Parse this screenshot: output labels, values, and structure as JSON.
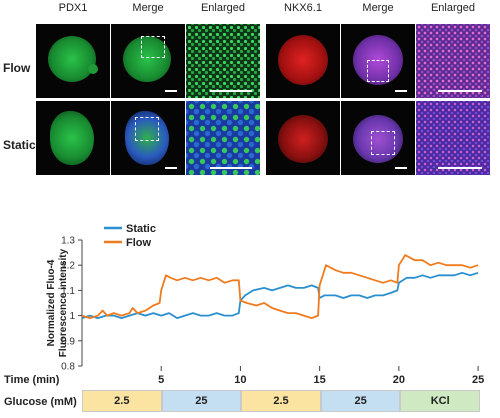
{
  "panels": {
    "headers": [
      "PDX1",
      "Merge",
      "Enlarged",
      "NKX6.1",
      "Merge",
      "Enlarged"
    ],
    "rows": [
      "Flow",
      "Static"
    ]
  },
  "chart_data": {
    "type": "line",
    "title": "",
    "xlabel": "Time (min)",
    "ylabel": "Normalized Fluo-4 Fluorescence intensity",
    "xlim": [
      0,
      25.5
    ],
    "ylim": [
      0.8,
      1.3
    ],
    "xticks": [
      5,
      10,
      15,
      20,
      25
    ],
    "yticks": [
      0.8,
      0.9,
      1.0,
      1.1,
      1.2,
      1.3
    ],
    "legend_position": "top-left",
    "series": [
      {
        "name": "Static",
        "color": "#2a8fd0",
        "x": [
          0.0,
          0.5,
          1.0,
          1.5,
          2.0,
          2.5,
          3.0,
          3.5,
          4.0,
          4.5,
          5.0,
          5.5,
          6.0,
          6.5,
          7.0,
          7.5,
          8.0,
          8.5,
          9.0,
          9.5,
          9.9,
          10.0,
          10.3,
          10.8,
          11.5,
          12.0,
          12.5,
          13.0,
          13.5,
          14.0,
          14.5,
          14.9,
          15.0,
          15.3,
          16.0,
          16.5,
          17.0,
          17.5,
          18.0,
          18.5,
          19.0,
          19.5,
          19.9,
          20.0,
          20.5,
          21.0,
          21.5,
          22.0,
          22.5,
          23.0,
          23.5,
          24.0,
          24.5,
          25.0
        ],
        "values": [
          0.99,
          1.0,
          0.99,
          1.0,
          1.0,
          0.99,
          1.0,
          1.01,
          1.0,
          1.01,
          1.0,
          1.01,
          0.99,
          1.0,
          1.01,
          1.0,
          1.0,
          1.01,
          1.0,
          1.0,
          1.01,
          1.06,
          1.08,
          1.1,
          1.11,
          1.1,
          1.11,
          1.12,
          1.11,
          1.11,
          1.12,
          1.11,
          1.07,
          1.08,
          1.08,
          1.07,
          1.08,
          1.08,
          1.07,
          1.08,
          1.08,
          1.09,
          1.1,
          1.13,
          1.15,
          1.15,
          1.16,
          1.15,
          1.16,
          1.16,
          1.16,
          1.17,
          1.16,
          1.17
        ]
      },
      {
        "name": "Flow",
        "color": "#ef7b1f",
        "x": [
          0.0,
          0.5,
          1.0,
          1.3,
          1.6,
          2.0,
          2.5,
          3.0,
          3.2,
          3.5,
          4.0,
          4.5,
          4.9,
          5.0,
          5.3,
          5.6,
          6.0,
          6.5,
          7.0,
          7.5,
          8.0,
          8.5,
          9.0,
          9.5,
          9.9,
          10.0,
          10.4,
          11.0,
          11.5,
          12.0,
          12.5,
          13.0,
          13.5,
          14.0,
          14.5,
          14.9,
          15.0,
          15.4,
          16.0,
          16.5,
          17.0,
          17.5,
          18.0,
          18.5,
          19.0,
          19.5,
          19.9,
          20.0,
          20.4,
          21.0,
          21.5,
          22.0,
          22.5,
          23.0,
          23.5,
          24.0,
          24.5,
          25.0
        ],
        "values": [
          1.0,
          0.99,
          1.0,
          1.02,
          1.0,
          1.01,
          1.0,
          1.01,
          1.03,
          1.01,
          1.02,
          1.04,
          1.05,
          1.1,
          1.16,
          1.15,
          1.14,
          1.15,
          1.14,
          1.15,
          1.14,
          1.15,
          1.13,
          1.14,
          1.14,
          1.06,
          1.05,
          1.04,
          1.05,
          1.03,
          1.02,
          1.01,
          1.01,
          1.0,
          0.99,
          1.0,
          1.12,
          1.2,
          1.18,
          1.17,
          1.17,
          1.16,
          1.15,
          1.14,
          1.13,
          1.14,
          1.13,
          1.2,
          1.24,
          1.22,
          1.22,
          1.2,
          1.21,
          1.2,
          1.2,
          1.2,
          1.19,
          1.2
        ]
      }
    ],
    "glucose": {
      "label": "Glucose (mM)",
      "segments": [
        {
          "label": "2.5",
          "start": 0,
          "end": 5,
          "color": "#fbe3a2"
        },
        {
          "label": "25",
          "start": 5,
          "end": 10,
          "color": "#c5dff2"
        },
        {
          "label": "2.5",
          "start": 10,
          "end": 15,
          "color": "#fbe3a2"
        },
        {
          "label": "25",
          "start": 15,
          "end": 20,
          "color": "#c5dff2"
        },
        {
          "label": "KCl",
          "start": 20,
          "end": 25,
          "color": "#cfe9c2"
        }
      ]
    }
  }
}
